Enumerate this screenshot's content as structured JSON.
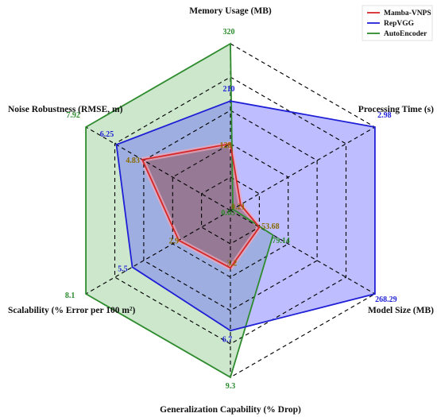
{
  "chart_data": {
    "type": "radar",
    "axes": [
      "Memory Usage (MB)",
      "Processing Time (s)",
      "Model Size (MB)",
      "Generalization Capability (% Drop)",
      "Scalability (% Error per 100 m²)",
      "Noise Robustness (RMSE, m)"
    ],
    "axis_max": [
      320,
      2.98,
      268.29,
      9.3,
      8.1,
      7.92
    ],
    "axis_max_labels": [
      "320",
      "2.98",
      "268.29",
      "9.3",
      "8.1",
      "7.92"
    ],
    "grid_levels": 5,
    "series": [
      {
        "name": "Mamba-VNPS",
        "color": "#d62728",
        "fill": "#8b3a3a",
        "values": [
          128,
          0.21,
          53.68,
          3.2,
          2.9,
          4.83
        ],
        "value_labels": [
          "128",
          "0.21",
          "53.68",
          "3.2",
          "2.9",
          "4.83"
        ]
      },
      {
        "name": "RepVGG",
        "color": "#1f1fd6",
        "fill": "#5a5aff",
        "values": [
          210,
          2.98,
          268.29,
          6.7,
          5.5,
          6.25
        ],
        "value_labels": [
          "210",
          "2.98",
          "268.29",
          "6.7",
          "5.5",
          "6.25"
        ]
      },
      {
        "name": "AutoEncoder",
        "color": "#2e8b2e",
        "fill": "#7fc27f",
        "values": [
          320,
          0.05,
          79.14,
          9.3,
          8.1,
          7.92
        ],
        "value_labels": [
          "320",
          "0.05",
          "79.14",
          "9.3",
          "8.1",
          "7.92"
        ]
      }
    ],
    "legend_position": "top-right"
  }
}
